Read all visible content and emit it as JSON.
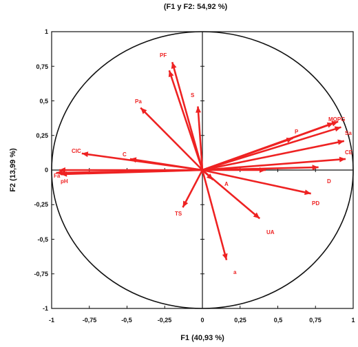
{
  "chart_data": {
    "type": "scatter",
    "subtype": "correlation-circle",
    "title": "(F1 y F2: 54,92 %)",
    "xlabel": "F1 (40,93 %)",
    "ylabel": "F2 (13,99 %)",
    "xlim": [
      -1,
      1
    ],
    "ylim": [
      -1,
      1
    ],
    "x_ticks": [
      "-1",
      "-0,75",
      "-0,5",
      "-0,25",
      "0",
      "0,25",
      "0,5",
      "0,75",
      "1"
    ],
    "y_ticks": [
      "1",
      "0,75",
      "0,5",
      "0,25",
      "0",
      "-0,25",
      "-0,5",
      "-0,75",
      "-1"
    ],
    "grid": false,
    "color": "#ee2222",
    "vectors": [
      {
        "label": "PF",
        "x": -0.2,
        "y": 0.78
      },
      {
        "label": "",
        "x": -0.22,
        "y": 0.72
      },
      {
        "label": "S",
        "x": -0.03,
        "y": 0.46
      },
      {
        "label": "Pa",
        "x": -0.41,
        "y": 0.45
      },
      {
        "label": "CIC",
        "x": -0.8,
        "y": 0.12
      },
      {
        "label": "C",
        "x": -0.48,
        "y": 0.08
      },
      {
        "label": "",
        "x": -0.95,
        "y": 0.0
      },
      {
        "label": "",
        "x": -0.97,
        "y": -0.02
      },
      {
        "label": "",
        "x": -0.94,
        "y": -0.03
      },
      {
        "label": "TS",
        "x": -0.13,
        "y": -0.27
      },
      {
        "label": "A",
        "x": 0.07,
        "y": -0.07
      },
      {
        "label": "UA",
        "x": 0.38,
        "y": -0.35
      },
      {
        "label": "",
        "x": 0.16,
        "y": -0.65
      },
      {
        "label": "PD",
        "x": 0.72,
        "y": -0.17
      },
      {
        "label": "",
        "x": 0.77,
        "y": 0.02
      },
      {
        "label": "D",
        "x": 0.42,
        "y": 0.0
      },
      {
        "label": "",
        "x": 0.95,
        "y": 0.08
      },
      {
        "label": "",
        "x": 0.94,
        "y": 0.21
      },
      {
        "label": "",
        "x": 0.92,
        "y": 0.31
      },
      {
        "label": "",
        "x": 0.9,
        "y": 0.35
      },
      {
        "label": "",
        "x": 0.87,
        "y": 0.34
      },
      {
        "label": "P",
        "x": 0.6,
        "y": 0.23
      }
    ],
    "label_fragments": [
      "PF",
      "S",
      "Pa",
      "CIC",
      "C",
      "Fa",
      "pH",
      "TS",
      "A",
      "UA",
      "a",
      "PD",
      "D",
      "P",
      "MOPG",
      "Sa",
      "CE"
    ]
  }
}
